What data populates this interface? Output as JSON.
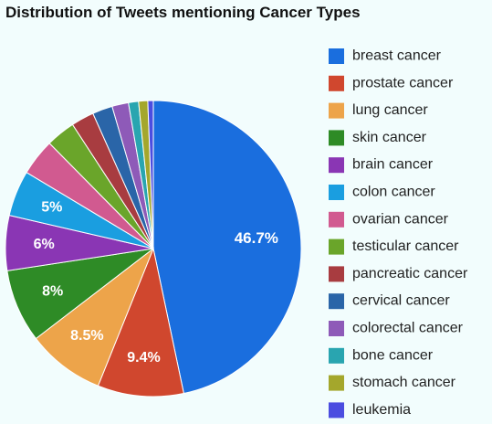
{
  "chart_data": {
    "type": "pie",
    "title": "Distribution of Tweets mentioning Cancer Types",
    "legend_position": "right",
    "start": "12 o'clock",
    "direction": "clockwise",
    "slices": [
      {
        "name": "breast cancer",
        "value": 46.7,
        "label": "46.7%",
        "color": "#1a6ede"
      },
      {
        "name": "prostate cancer",
        "value": 9.4,
        "label": "9.4%",
        "color": "#d0472e"
      },
      {
        "name": "lung cancer",
        "value": 8.5,
        "label": "8.5%",
        "color": "#eda44a"
      },
      {
        "name": "skin cancer",
        "value": 8.0,
        "label": "8%",
        "color": "#2e8b26"
      },
      {
        "name": "brain cancer",
        "value": 6.0,
        "label": "6%",
        "color": "#8a36b4"
      },
      {
        "name": "colon cancer",
        "value": 5.0,
        "label": "5%",
        "color": "#1a9ee0"
      },
      {
        "name": "ovarian cancer",
        "value": 4.0,
        "label": "",
        "color": "#d15a90"
      },
      {
        "name": "testicular cancer",
        "value": 3.2,
        "label": "",
        "color": "#6aa52a"
      },
      {
        "name": "pancreatic cancer",
        "value": 2.5,
        "label": "",
        "color": "#a83c40"
      },
      {
        "name": "cervical cancer",
        "value": 2.2,
        "label": "",
        "color": "#2a65a8"
      },
      {
        "name": "colorectal cancer",
        "value": 1.8,
        "label": "",
        "color": "#8e5ab8"
      },
      {
        "name": "bone cancer",
        "value": 1.1,
        "label": "",
        "color": "#29a5b0"
      },
      {
        "name": "stomach cancer",
        "value": 1.0,
        "label": "",
        "color": "#a4a72c"
      },
      {
        "name": "leukemia",
        "value": 0.6,
        "label": "",
        "color": "#4b4de0"
      }
    ]
  }
}
